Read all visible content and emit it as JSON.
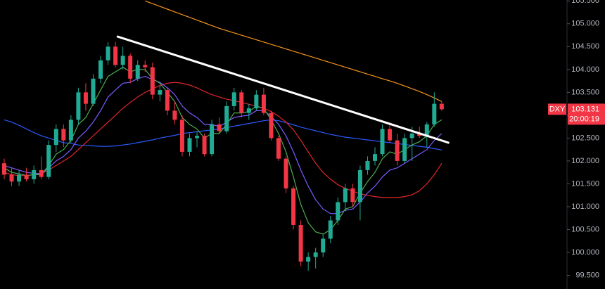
{
  "chart_data": {
    "type": "candlestick",
    "background": "#000000",
    "up_color": "#22ab94",
    "down_color": "#f23645",
    "ylim": [
      99.2,
      105.52
    ],
    "yticks": [
      {
        "value": 99.5,
        "label": "99.500"
      },
      {
        "value": 100,
        "label": "100.000"
      },
      {
        "value": 100.5,
        "label": "100.500"
      },
      {
        "value": 101,
        "label": "101.000"
      },
      {
        "value": 101.5,
        "label": "101.500"
      },
      {
        "value": 102,
        "label": "102.000"
      },
      {
        "value": 102.5,
        "label": "102.500"
      },
      {
        "value": 103,
        "label": "103.000"
      },
      {
        "value": 103.5,
        "label": "103.500"
      },
      {
        "value": 104,
        "label": "104.000"
      },
      {
        "value": 104.5,
        "label": "104.500"
      },
      {
        "value": 105,
        "label": "105.000"
      },
      {
        "value": 105.5,
        "label": "105.500"
      }
    ],
    "candles": [
      [
        101.95,
        102.05,
        101.6,
        101.7
      ],
      [
        101.7,
        101.85,
        101.45,
        101.55
      ],
      [
        101.55,
        101.8,
        101.45,
        101.7
      ],
      [
        101.7,
        101.85,
        101.55,
        101.6
      ],
      [
        101.6,
        101.9,
        101.5,
        101.8
      ],
      [
        101.8,
        102.1,
        101.6,
        101.65
      ],
      [
        101.65,
        102.45,
        101.6,
        102.35
      ],
      [
        102.35,
        102.8,
        102.2,
        102.7
      ],
      [
        102.7,
        102.8,
        102.3,
        102.45
      ],
      [
        102.45,
        103.0,
        102.4,
        102.9
      ],
      [
        102.9,
        103.6,
        102.8,
        103.5
      ],
      [
        103.5,
        103.7,
        103.1,
        103.25
      ],
      [
        103.25,
        103.9,
        103.2,
        103.8
      ],
      [
        103.8,
        104.3,
        103.7,
        104.2
      ],
      [
        104.2,
        104.6,
        104.1,
        104.5
      ],
      [
        104.5,
        104.6,
        104.05,
        104.1
      ],
      [
        104.1,
        104.5,
        104.0,
        104.3
      ],
      [
        104.3,
        104.35,
        103.7,
        103.8
      ],
      [
        103.8,
        104.2,
        103.75,
        104.1
      ],
      [
        104.1,
        104.2,
        103.95,
        104.05
      ],
      [
        104.05,
        104.15,
        103.35,
        103.45
      ],
      [
        103.45,
        103.65,
        103.3,
        103.55
      ],
      [
        103.55,
        103.6,
        103.0,
        103.1
      ],
      [
        103.1,
        103.3,
        102.8,
        102.9
      ],
      [
        102.9,
        103.0,
        102.1,
        102.2
      ],
      [
        102.2,
        102.6,
        102.1,
        102.5
      ],
      [
        102.5,
        102.65,
        102.3,
        102.55
      ],
      [
        102.55,
        102.6,
        102.1,
        102.15
      ],
      [
        102.15,
        102.9,
        102.1,
        102.8
      ],
      [
        102.8,
        102.95,
        102.6,
        102.65
      ],
      [
        102.65,
        103.3,
        102.6,
        103.2
      ],
      [
        103.2,
        103.6,
        103.1,
        103.5
      ],
      [
        103.5,
        103.55,
        102.95,
        103.05
      ],
      [
        103.05,
        103.25,
        102.9,
        103.15
      ],
      [
        103.15,
        103.55,
        103.1,
        103.45
      ],
      [
        103.45,
        103.6,
        103.0,
        103.05
      ],
      [
        103.05,
        103.1,
        102.45,
        102.5
      ],
      [
        102.5,
        102.55,
        102.0,
        102.05
      ],
      [
        102.05,
        102.1,
        101.3,
        101.4
      ],
      [
        101.4,
        101.45,
        100.5,
        100.6
      ],
      [
        100.6,
        100.7,
        99.7,
        99.8
      ],
      [
        99.8,
        100.0,
        99.6,
        99.9
      ],
      [
        99.9,
        100.1,
        99.65,
        100.0
      ],
      [
        100.0,
        100.4,
        99.9,
        100.3
      ],
      [
        100.3,
        100.8,
        100.2,
        100.7
      ],
      [
        100.7,
        101.2,
        100.6,
        101.1
      ],
      [
        101.1,
        101.5,
        100.9,
        101.4
      ],
      [
        101.4,
        101.5,
        101.0,
        101.1
      ],
      [
        101.1,
        101.9,
        100.7,
        101.8
      ],
      [
        101.8,
        102.1,
        101.7,
        102.0
      ],
      [
        102.0,
        102.3,
        101.9,
        102.15
      ],
      [
        102.15,
        102.8,
        102.1,
        102.7
      ],
      [
        102.7,
        102.8,
        102.4,
        102.45
      ],
      [
        102.45,
        102.6,
        101.9,
        102.0
      ],
      [
        102.0,
        102.6,
        101.95,
        102.5
      ],
      [
        102.5,
        102.75,
        102.0,
        102.6
      ],
      [
        102.6,
        102.75,
        102.5,
        102.55
      ],
      [
        102.55,
        102.85,
        102.3,
        102.8
      ],
      [
        102.8,
        103.5,
        102.75,
        103.25
      ],
      [
        103.25,
        103.3,
        103.1,
        103.131
      ]
    ],
    "moving_averages": [
      {
        "color": "#f7931a",
        "values": [
          null,
          null,
          null,
          null,
          null,
          null,
          null,
          null,
          null,
          null,
          null,
          null,
          null,
          null,
          null,
          null,
          null,
          null,
          null,
          105.5,
          105.44,
          105.38,
          105.32,
          105.26,
          105.2,
          105.14,
          105.08,
          105.02,
          104.96,
          104.9,
          104.85,
          104.8,
          104.75,
          104.7,
          104.65,
          104.6,
          104.55,
          104.5,
          104.45,
          104.4,
          104.35,
          104.3,
          104.25,
          104.2,
          104.15,
          104.1,
          104.05,
          104.0,
          103.95,
          103.9,
          103.85,
          103.8,
          103.75,
          103.7,
          103.64,
          103.58,
          103.52,
          103.45,
          103.38,
          103.3
        ]
      },
      {
        "color": "#2b59ff",
        "values": [
          102.9,
          102.85,
          102.78,
          102.7,
          102.62,
          102.55,
          102.5,
          102.45,
          102.4,
          102.38,
          102.35,
          102.34,
          102.33,
          102.32,
          102.32,
          102.33,
          102.35,
          102.37,
          102.4,
          102.43,
          102.46,
          102.5,
          102.53,
          102.56,
          102.6,
          102.62,
          102.64,
          102.66,
          102.68,
          102.7,
          102.73,
          102.76,
          102.79,
          102.82,
          102.85,
          102.88,
          102.9,
          102.88,
          102.84,
          102.79,
          102.74,
          102.7,
          102.66,
          102.62,
          102.58,
          102.55,
          102.52,
          102.5,
          102.48,
          102.46,
          102.44,
          102.42,
          102.4,
          102.38,
          102.36,
          102.34,
          102.32,
          102.3,
          102.27,
          102.24
        ]
      },
      {
        "color": "#e0262b",
        "values": [
          101.75,
          101.7,
          101.68,
          101.68,
          101.7,
          101.72,
          101.8,
          101.9,
          102.0,
          102.1,
          102.25,
          102.4,
          102.55,
          102.7,
          102.85,
          103.0,
          103.15,
          103.28,
          103.4,
          103.5,
          103.58,
          103.65,
          103.7,
          103.72,
          103.7,
          103.66,
          103.6,
          103.52,
          103.45,
          103.4,
          103.35,
          103.32,
          103.28,
          103.24,
          103.2,
          103.15,
          103.08,
          102.98,
          102.85,
          102.68,
          102.45,
          102.2,
          101.95,
          101.75,
          101.6,
          101.48,
          101.4,
          101.34,
          101.28,
          101.25,
          101.22,
          101.2,
          101.2,
          101.2,
          101.22,
          101.26,
          101.35,
          101.5,
          101.7,
          101.95
        ]
      },
      {
        "color": "#7b5cff",
        "values": [
          101.9,
          101.85,
          101.8,
          101.75,
          101.73,
          101.72,
          101.85,
          102.0,
          102.1,
          102.25,
          102.5,
          102.65,
          102.85,
          103.1,
          103.4,
          103.55,
          103.7,
          103.72,
          103.8,
          103.85,
          103.78,
          103.72,
          103.6,
          103.45,
          103.2,
          103.05,
          102.95,
          102.8,
          102.8,
          102.75,
          102.85,
          102.95,
          102.98,
          103.0,
          103.1,
          103.1,
          102.98,
          102.8,
          102.55,
          102.2,
          101.8,
          101.45,
          101.15,
          100.95,
          100.85,
          100.85,
          100.92,
          100.95,
          101.1,
          101.3,
          101.45,
          101.65,
          101.8,
          101.85,
          101.95,
          102.05,
          102.15,
          102.25,
          102.45,
          102.6
        ]
      },
      {
        "color": "#4caf50",
        "values": [
          101.85,
          101.75,
          101.72,
          101.68,
          101.7,
          101.7,
          101.9,
          102.15,
          102.25,
          102.45,
          102.8,
          102.95,
          103.25,
          103.55,
          103.85,
          103.95,
          104.05,
          103.95,
          104.0,
          104.0,
          103.8,
          103.7,
          103.5,
          103.3,
          102.95,
          102.8,
          102.7,
          102.5,
          102.6,
          102.6,
          102.8,
          103.05,
          103.05,
          103.08,
          103.2,
          103.15,
          102.9,
          102.6,
          102.2,
          101.65,
          101.05,
          100.65,
          100.45,
          100.4,
          100.5,
          100.7,
          100.95,
          101.0,
          101.3,
          101.55,
          101.75,
          102.05,
          102.2,
          102.15,
          102.25,
          102.35,
          102.42,
          102.55,
          102.8,
          102.9
        ]
      }
    ],
    "trendline": {
      "color": "#ffffff",
      "x": [
        15.3,
        59.9
      ],
      "values": [
        104.72,
        102.4
      ]
    },
    "last_price": {
      "symbol": "DXY",
      "value": 103.131,
      "label": "103.131",
      "countdown": "20:00:19",
      "color": "#f23645"
    }
  }
}
